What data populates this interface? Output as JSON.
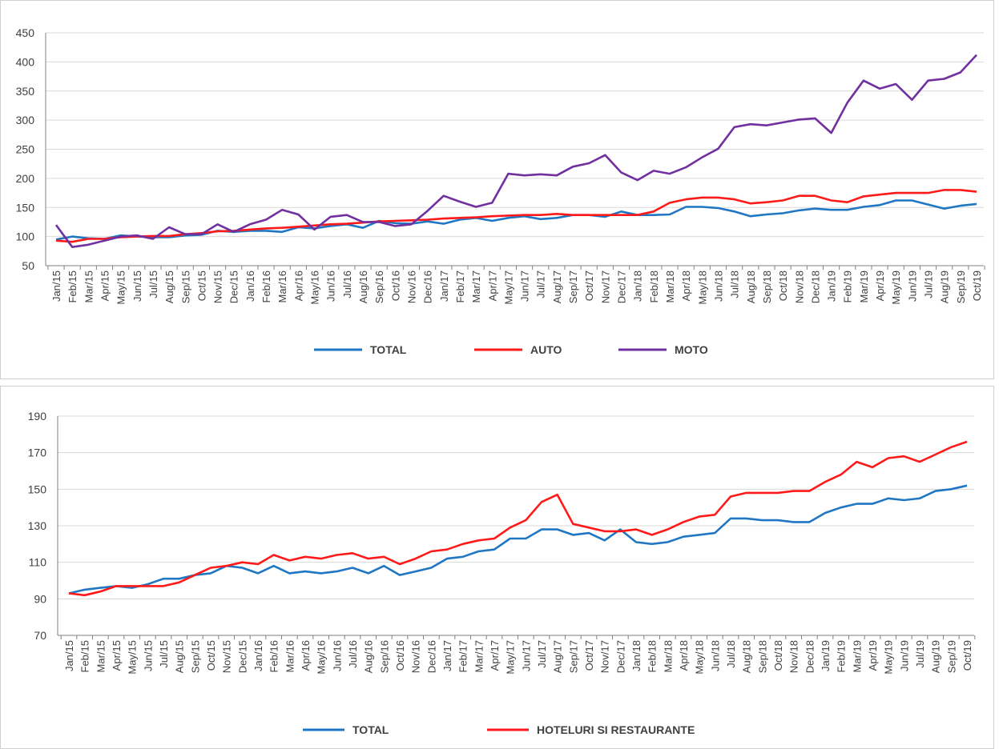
{
  "chart_data": [
    {
      "type": "line",
      "title": "",
      "xlabel": "",
      "ylabel": "",
      "ylim": [
        50,
        450
      ],
      "yticks": [
        50,
        100,
        150,
        200,
        250,
        300,
        350,
        400,
        450
      ],
      "grid": true,
      "legend": "bottom",
      "categories": [
        "Jan/15",
        "Feb/15",
        "Mar/15",
        "Apr/15",
        "May/15",
        "Jun/15",
        "Jul/15",
        "Aug/15",
        "Sep/15",
        "Oct/15",
        "Nov/15",
        "Dec/15",
        "Jan/16",
        "Feb/16",
        "Mar/16",
        "Apr/16",
        "May/16",
        "Jun/16",
        "Jul/16",
        "Aug/16",
        "Sep/16",
        "Oct/16",
        "Nov/16",
        "Dec/16",
        "Jan/17",
        "Feb/17",
        "Mar/17",
        "Apr/17",
        "May/17",
        "Jun/17",
        "Jul/17",
        "Aug/17",
        "Sep/17",
        "Oct/17",
        "Nov/17",
        "Dec/17",
        "Jan/18",
        "Feb/18",
        "Mar/18",
        "Apr/18",
        "May/18",
        "Jun/18",
        "Jul/18",
        "Aug/18",
        "Sep/18",
        "Oct/18",
        "Nov/18",
        "Dec/18",
        "Jan/19",
        "Feb/19",
        "Mar/19",
        "Apr/19",
        "May/19",
        "Jun/19",
        "Jul/19",
        "Aug/19",
        "Sep/19",
        "Oct/19"
      ],
      "series": [
        {
          "name": "TOTAL",
          "color": "#1f77c4",
          "values": [
            95,
            100,
            97,
            96,
            102,
            100,
            99,
            99,
            102,
            103,
            110,
            108,
            110,
            110,
            108,
            116,
            114,
            118,
            121,
            115,
            127,
            123,
            122,
            126,
            122,
            129,
            132,
            127,
            132,
            135,
            130,
            132,
            137,
            137,
            134,
            143,
            137,
            137,
            138,
            151,
            151,
            149,
            143,
            135,
            138,
            140,
            145,
            148,
            146,
            146,
            151,
            154,
            162,
            162,
            155,
            148,
            153,
            156
          ]
        },
        {
          "name": "AUTO",
          "color": "#ff1a1a",
          "values": [
            93,
            91,
            96,
            96,
            99,
            100,
            101,
            101,
            104,
            106,
            109,
            110,
            112,
            114,
            115,
            117,
            119,
            121,
            122,
            124,
            126,
            127,
            128,
            129,
            131,
            132,
            133,
            135,
            136,
            137,
            137,
            139,
            137,
            137,
            137,
            137,
            137,
            143,
            158,
            164,
            167,
            167,
            164,
            157,
            159,
            162,
            170,
            170,
            162,
            159,
            169,
            172,
            175,
            175,
            175,
            180,
            180,
            177
          ]
        },
        {
          "name": "MOTO",
          "color": "#7030a0",
          "values": [
            120,
            82,
            86,
            93,
            100,
            102,
            96,
            116,
            104,
            104,
            121,
            108,
            121,
            129,
            146,
            138,
            112,
            134,
            137,
            125,
            125,
            118,
            121,
            144,
            170,
            160,
            151,
            158,
            208,
            205,
            207,
            205,
            220,
            226,
            240,
            210,
            197,
            213,
            208,
            219,
            236,
            251,
            288,
            293,
            291,
            296,
            301,
            303,
            278,
            330,
            368,
            354,
            362,
            335,
            368,
            371,
            382,
            412
          ]
        }
      ]
    },
    {
      "type": "line",
      "title": "",
      "xlabel": "",
      "ylabel": "",
      "ylim": [
        70,
        190
      ],
      "yticks": [
        70,
        90,
        110,
        130,
        150,
        170,
        190
      ],
      "grid": true,
      "legend": "bottom",
      "categories": [
        "Jan/15",
        "Feb/15",
        "Mar/15",
        "Apr/15",
        "May/15",
        "Jun/15",
        "Jul/15",
        "Aug/15",
        "Sep/15",
        "Oct/15",
        "Nov/15",
        "Dec/15",
        "Jan/16",
        "Feb/16",
        "Mar/16",
        "Apr/16",
        "May/16",
        "Jun/16",
        "Jul/16",
        "Aug/16",
        "Sep/16",
        "Oct/16",
        "Nov/16",
        "Dec/16",
        "Jan/17",
        "Feb/17",
        "Mar/17",
        "Apr/17",
        "May/17",
        "Jun/17",
        "Jul/17",
        "Aug/17",
        "Sep/17",
        "Oct/17",
        "Nov/17",
        "Dec/17",
        "Jan/18",
        "Feb/18",
        "Mar/18",
        "Apr/18",
        "May/18",
        "Jun/18",
        "Jul/18",
        "Aug/18",
        "Sep/18",
        "Oct/18",
        "Nov/18",
        "Dec/18",
        "Jan/19",
        "Feb/19",
        "Mar/19",
        "Apr/19",
        "May/19",
        "Jun/19",
        "Jul/19",
        "Aug/19",
        "Sep/19",
        "Oct/19"
      ],
      "series": [
        {
          "name": "TOTAL",
          "color": "#1f77c4",
          "values": [
            93,
            95,
            96,
            97,
            96,
            98,
            101,
            101,
            103,
            104,
            108,
            107,
            104,
            108,
            104,
            105,
            104,
            105,
            107,
            104,
            108,
            103,
            105,
            107,
            112,
            113,
            116,
            117,
            123,
            123,
            128,
            128,
            125,
            126,
            122,
            128,
            121,
            120,
            121,
            124,
            125,
            126,
            134,
            134,
            133,
            133,
            132,
            132,
            137,
            140,
            142,
            142,
            145,
            144,
            145,
            149,
            150,
            152
          ]
        },
        {
          "name": "HOTELURI SI RESTAURANTE",
          "color": "#ff1a1a",
          "values": [
            93,
            92,
            94,
            97,
            97,
            97,
            97,
            99,
            103,
            107,
            108,
            110,
            109,
            114,
            111,
            113,
            112,
            114,
            115,
            112,
            113,
            109,
            112,
            116,
            117,
            120,
            122,
            123,
            129,
            133,
            143,
            147,
            131,
            129,
            127,
            127,
            128,
            125,
            128,
            132,
            135,
            136,
            146,
            148,
            148,
            148,
            149,
            149,
            154,
            158,
            165,
            162,
            167,
            168,
            165,
            169,
            173,
            176
          ]
        }
      ]
    }
  ]
}
